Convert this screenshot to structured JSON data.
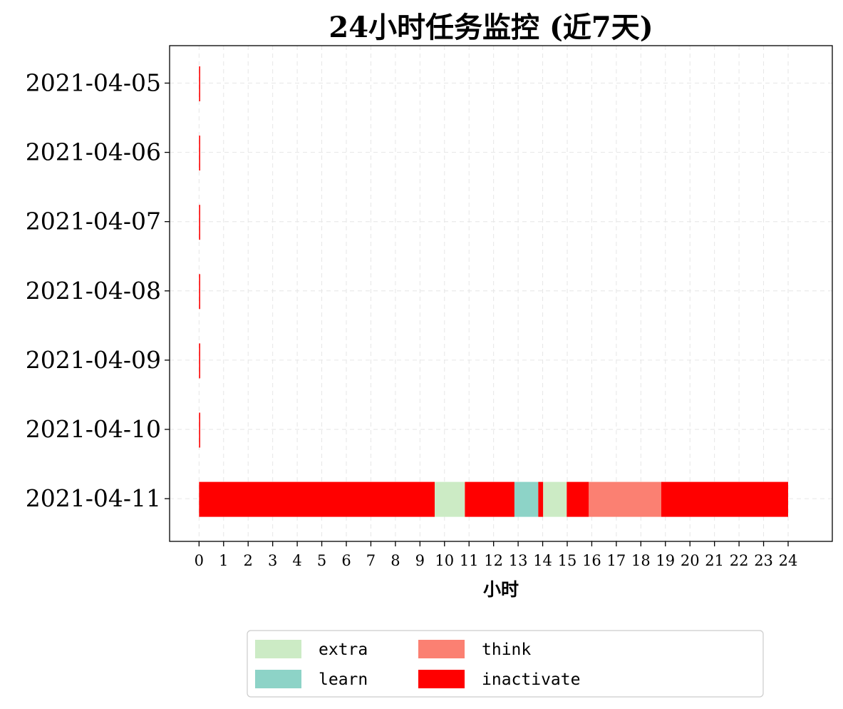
{
  "chart_data": {
    "type": "bar",
    "orientation": "horizontal-timeline",
    "title": "24小时任务监控 (近7天)",
    "xlabel": "小时",
    "ylabel": "",
    "xlim": [
      -1.2,
      25.8
    ],
    "xticks": [
      0,
      1,
      2,
      3,
      4,
      5,
      6,
      7,
      8,
      9,
      10,
      11,
      12,
      13,
      14,
      15,
      16,
      17,
      18,
      19,
      20,
      21,
      22,
      23,
      24
    ],
    "grid": true,
    "legend_placement": "bottom-center",
    "categories": [
      "2021-04-05",
      "2021-04-06",
      "2021-04-07",
      "2021-04-08",
      "2021-04-09",
      "2021-04-10",
      "2021-04-11"
    ],
    "legend": [
      {
        "name": "extra",
        "color": "#ccebc5"
      },
      {
        "name": "learn",
        "color": "#8dd3c7"
      },
      {
        "name": "think",
        "color": "#fb8072"
      },
      {
        "name": "inactivate",
        "color": "#ff0000"
      }
    ],
    "segments": [
      {
        "day": "2021-04-05",
        "start": 0,
        "end": 0.03,
        "task": "inactivate"
      },
      {
        "day": "2021-04-06",
        "start": 0,
        "end": 0.03,
        "task": "inactivate"
      },
      {
        "day": "2021-04-07",
        "start": 0,
        "end": 0.03,
        "task": "inactivate"
      },
      {
        "day": "2021-04-08",
        "start": 0,
        "end": 0.03,
        "task": "inactivate"
      },
      {
        "day": "2021-04-09",
        "start": 0,
        "end": 0.03,
        "task": "inactivate"
      },
      {
        "day": "2021-04-10",
        "start": 0,
        "end": 0.03,
        "task": "inactivate"
      },
      {
        "day": "2021-04-11",
        "start": 0,
        "end": 9.6,
        "task": "inactivate"
      },
      {
        "day": "2021-04-11",
        "start": 9.6,
        "end": 10.83,
        "task": "extra"
      },
      {
        "day": "2021-04-11",
        "start": 10.83,
        "end": 12.85,
        "task": "inactivate"
      },
      {
        "day": "2021-04-11",
        "start": 12.85,
        "end": 13.82,
        "task": "learn"
      },
      {
        "day": "2021-04-11",
        "start": 13.82,
        "end": 14.02,
        "task": "inactivate"
      },
      {
        "day": "2021-04-11",
        "start": 14.02,
        "end": 14.98,
        "task": "extra"
      },
      {
        "day": "2021-04-11",
        "start": 14.98,
        "end": 15.88,
        "task": "inactivate"
      },
      {
        "day": "2021-04-11",
        "start": 15.88,
        "end": 18.83,
        "task": "think"
      },
      {
        "day": "2021-04-11",
        "start": 18.83,
        "end": 24,
        "task": "inactivate"
      }
    ]
  }
}
